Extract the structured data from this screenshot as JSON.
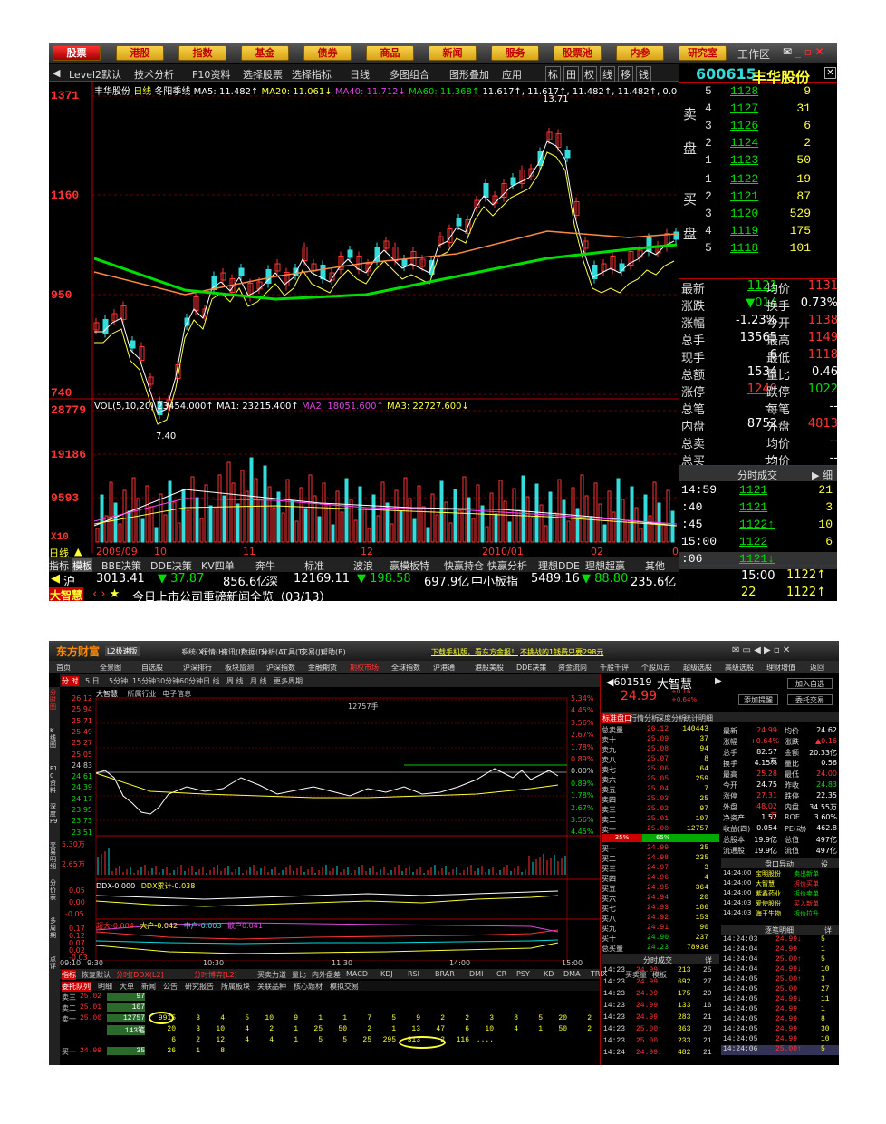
{
  "s1": {
    "menu": [
      "股票",
      "港股",
      "指数",
      "基金",
      "债券",
      "商品",
      "新闻",
      "服务",
      "股票池",
      "内参",
      "研究室"
    ],
    "workarea": "工作区",
    "toolbar": [
      "Level2默认",
      "技术分析",
      "F10资料",
      "选择股票",
      "选择指标",
      "日线",
      "多图组合",
      "图形叠加",
      "应用"
    ],
    "toolbar_icons": [
      "标",
      "田",
      "权",
      "线",
      "移",
      "钱"
    ],
    "stock_code": "600615",
    "stock_name": "丰华股份",
    "chart_header": {
      "name": "丰华股份",
      "period": "日线",
      "type": "冬阳季线",
      "ma5": "MA5: 11.482↑",
      "ma20": "MA20: 11.061↓",
      "ma40": "MA40: 11.712↓",
      "ma60": "MA60: 11.368↑",
      "extra": "11.617↑, 11.617↑, 11.482↑, 11.482↑, 0.0"
    },
    "price_axis": [
      "1371",
      "1160",
      "950",
      "740"
    ],
    "high_label": "13.71",
    "low_label": "7.40",
    "vol_header": {
      "label": "VOL(5,10,20)",
      "vol": "23454.000↑",
      "ma1": "MA1: 23215.400↑",
      "ma2": "MA2: 18051.600↑",
      "ma3": "MA3: 22727.600↓"
    },
    "vol_axis": [
      "28779",
      "19186",
      "9593",
      "X10"
    ],
    "date_axis": [
      "日线",
      "2009/09",
      "10",
      "11",
      "12",
      "2010/01",
      "02",
      "03"
    ],
    "sell_label": [
      "卖",
      "盘"
    ],
    "buy_label": [
      "买",
      "盘"
    ],
    "sell_orders": [
      {
        "i": "5",
        "p": "1128",
        "v": "9"
      },
      {
        "i": "4",
        "p": "1127",
        "v": "31"
      },
      {
        "i": "3",
        "p": "1126",
        "v": "6"
      },
      {
        "i": "2",
        "p": "1124",
        "v": "2"
      },
      {
        "i": "1",
        "p": "1123",
        "v": "50"
      }
    ],
    "buy_orders": [
      {
        "i": "1",
        "p": "1122",
        "v": "19"
      },
      {
        "i": "2",
        "p": "1121",
        "v": "87"
      },
      {
        "i": "3",
        "p": "1120",
        "v": "529"
      },
      {
        "i": "4",
        "p": "1119",
        "v": "175"
      },
      {
        "i": "5",
        "p": "1118",
        "v": "101"
      }
    ],
    "quote": [
      {
        "k1": "最新",
        "v1": "1121",
        "k2": "均价",
        "v2": "1131"
      },
      {
        "k1": "涨跌",
        "v1": "▼014",
        "k2": "换手",
        "v2": "0.73%"
      },
      {
        "k1": "涨幅",
        "v1": "-1.23%",
        "k2": "今开",
        "v2": "1138"
      },
      {
        "k1": "总手",
        "v1": "13565",
        "k2": "最高",
        "v2": "1149"
      },
      {
        "k1": "现手",
        "v1": "6",
        "k2": "最低",
        "v2": "1118"
      },
      {
        "k1": "总额",
        "v1": "1534",
        "k2": "量比",
        "v2": "0.46"
      },
      {
        "k1": "涨停",
        "v1": "1249",
        "k2": "跌停",
        "v2": "1022"
      },
      {
        "k1": "总笔",
        "v1": "---",
        "k2": "每笔",
        "v2": "--"
      },
      {
        "k1": "内盘",
        "v1": "8752",
        "k2": "外盘",
        "v2": "4813"
      },
      {
        "k1": "总卖",
        "v1": "---",
        "k2": "均价",
        "v2": "--"
      },
      {
        "k1": "总买",
        "v1": "---",
        "k2": "均价",
        "v2": "--"
      }
    ],
    "ticks_header": "分时成交",
    "ticks_tab": "细",
    "ticks": [
      {
        "t": "14:59",
        "p": "1121",
        "v": "21"
      },
      {
        "t": ":40",
        "p": "1121",
        "v": "3"
      },
      {
        "t": ":45",
        "p": "1122↑",
        "v": "10"
      },
      {
        "t": "15:00",
        "p": "1122",
        "v": "6"
      },
      {
        "t": ":06",
        "p": "1121↓",
        "v": ""
      }
    ],
    "ticks_tail": [
      {
        "t": "15:00",
        "p": "1122↑"
      },
      {
        "t": "",
        "p": "1122↑"
      }
    ],
    "ticks_tail_nums": [
      "22",
      "1122"
    ],
    "tabs": [
      "指标",
      "模板",
      "BBE决策",
      "DDE决策",
      "KV四单",
      "奔牛",
      "标准",
      "波浪",
      "赢模板特",
      "快赢持仓",
      "快赢分析",
      "理想DDE",
      "理想超赢",
      "其他"
    ],
    "index_bar": {
      "sh_label": "沪",
      "sh": "3013.41",
      "sh_chg": "▼ 37.87",
      "sh_amt": "856.6亿",
      "sz_label": "深",
      "sz": "12169.11",
      "sz_chg": "▼ 198.58",
      "sz_amt": "697.9亿",
      "zx_label": "中小板指",
      "zx": "5489.16",
      "zx_chg": "▼ 88.80",
      "zx_amt": "235.6亿"
    },
    "news": {
      "badge": "大智慧",
      "text": "今日上市公司重磅新闻全览（03/13）"
    }
  },
  "s2": {
    "logo": "东方财富",
    "logo_sub": "L2极速版",
    "title_menu": [
      "系统(X)",
      "行情(H)",
      "资讯(I)",
      "数据(D)",
      "分析(A)",
      "工具(T)",
      "交易(J)",
      "帮助(B)"
    ],
    "title_ads": [
      "下载手机版，看东方金报！",
      "不挑战的1钱费只要298元"
    ],
    "nav": [
      "首页",
      "全景图",
      "自选股",
      "沪深排行",
      "板块监测",
      "沪深指数",
      "金融期货",
      "期权市场",
      "全球指数",
      "沪港通",
      "港股美股",
      "DDE决策",
      "资金流向",
      "千股千评",
      "个股风云",
      "超级选股",
      "高级选股",
      "理财增值",
      "返回"
    ],
    "chart_tabs": [
      "分 时",
      "5 日",
      "5分钟",
      "15分钟",
      "30分钟",
      "60分钟",
      "日 线",
      "周 线",
      "月 线",
      "更多周期"
    ],
    "side_tabs": [
      "分时图",
      "K线图",
      "F10资料",
      "深度F9",
      "交易明细",
      "分价表",
      "多周期",
      "点评"
    ],
    "chart_title": {
      "name": "大智慧",
      "industry": "所属行业",
      "sector": "电子信息"
    },
    "chart_label": "12757手",
    "price_axis": [
      "26.12",
      "25.94",
      "25.71",
      "25.49",
      "25.27",
      "25.05",
      "24.83",
      "24.61",
      "24.39",
      "24.17",
      "23.95",
      "23.73",
      "23.51"
    ],
    "pct_axis": [
      "5.34%",
      "4.45%",
      "3.56%",
      "2.67%",
      "1.78%",
      "0.89%",
      "0.00%",
      "0.89%",
      "1.78%",
      "2.67%",
      "3.56%",
      "4.45%"
    ],
    "vol_axis": [
      "5.30万",
      "2.65万"
    ],
    "ddx_header": [
      "DDX-0.000",
      "DDX累计-0.038"
    ],
    "ddx_axis": [
      "0.05",
      "0.00",
      "-0.05"
    ],
    "ddx2_header": [
      "超大-0.004",
      "大户-0.042",
      "中户-0.003",
      "散户0.041"
    ],
    "ddx2_axis": [
      "0.17",
      "0.12",
      "0.07",
      "0.02",
      "-0.03"
    ],
    "time_axis": [
      "09:10",
      "9:30",
      "10:30",
      "11:30",
      "14:00",
      "15:00"
    ],
    "bottom_tabs": [
      "指标",
      "恢复默认",
      "分时[DDX(L2]",
      "分时博弈[L2]",
      "买卖力道",
      "量比",
      "内外盘差",
      "MACD",
      "KDJ",
      "RSI",
      "BRAR",
      "DMI",
      "CR",
      "PSY",
      "KD",
      "DMA",
      "TRIX",
      "买卖量",
      "模板"
    ],
    "bottom_tabs2": [
      "委托队列",
      "明细",
      "大单",
      "新闻",
      "公告",
      "研究报告",
      "所属板块",
      "关联品种",
      "核心题材",
      "模拟交易"
    ],
    "queue": [
      {
        "label": "卖三",
        "price": "25.02",
        "vol": "97",
        "items": []
      },
      {
        "label": "卖二",
        "price": "25.01",
        "vol": "107",
        "items": []
      },
      {
        "label": "卖一",
        "price": "25.00",
        "vol": "12757",
        "items": [
          "9915",
          "3",
          "4",
          "5",
          "10",
          "9",
          "1",
          "1",
          "7",
          "5",
          "9",
          "2",
          "2",
          "3",
          "8",
          "5",
          "20",
          "2"
        ]
      },
      {
        "label": "",
        "price": "",
        "vol": "143笔",
        "items": [
          "20",
          "3",
          "10",
          "4",
          "2",
          "1",
          "25",
          "50",
          "2",
          "1",
          "13",
          "47",
          "6",
          "10",
          "4",
          "1",
          "50",
          "2"
        ]
      },
      {
        "label": "",
        "price": "",
        "vol": "",
        "items": [
          "6",
          "2",
          "12",
          "4",
          "4",
          "1",
          "5",
          "5",
          "25",
          "295",
          "313",
          "2",
          "116",
          "...."
        ]
      },
      {
        "label": "买一",
        "price": "24.99",
        "vol": "35",
        "items": [
          "26",
          "1",
          "8"
        ]
      }
    ],
    "code": "601519",
    "name": "大智慧",
    "price": "24.99",
    "chg": "+0.16",
    "chg_pct": "+0.64%",
    "btns": [
      "加入自选",
      "添加提醒",
      "委托交易"
    ],
    "sub_tabs": [
      "标准盘口",
      "行情分析",
      "深度分析",
      "统计明细"
    ],
    "total_sell": {
      "label": "总卖量",
      "price": "26.12",
      "vol": "140443"
    },
    "sells": [
      {
        "n": "卖十",
        "p": "25.09",
        "v": "37"
      },
      {
        "n": "卖九",
        "p": "25.08",
        "v": "94"
      },
      {
        "n": "卖八",
        "p": "25.07",
        "v": "8"
      },
      {
        "n": "卖七",
        "p": "25.06",
        "v": "64"
      },
      {
        "n": "卖六",
        "p": "25.05",
        "v": "259"
      },
      {
        "n": "卖五",
        "p": "25.04",
        "v": "7"
      },
      {
        "n": "卖四",
        "p": "25.03",
        "v": "25"
      },
      {
        "n": "卖三",
        "p": "25.02",
        "v": "97"
      },
      {
        "n": "卖二",
        "p": "25.01",
        "v": "107"
      },
      {
        "n": "卖一",
        "p": "25.00",
        "v": "12757"
      }
    ],
    "ratio": {
      "left": "35%",
      "right": "65%"
    },
    "buys": [
      {
        "n": "买一",
        "p": "24.99",
        "v": "35"
      },
      {
        "n": "买二",
        "p": "24.98",
        "v": "235"
      },
      {
        "n": "买三",
        "p": "24.97",
        "v": "3"
      },
      {
        "n": "买四",
        "p": "24.96",
        "v": "4"
      },
      {
        "n": "买五",
        "p": "24.95",
        "v": "364"
      },
      {
        "n": "买六",
        "p": "24.94",
        "v": "20"
      },
      {
        "n": "买七",
        "p": "24.93",
        "v": "186"
      },
      {
        "n": "买八",
        "p": "24.92",
        "v": "153"
      },
      {
        "n": "买九",
        "p": "24.91",
        "v": "90"
      },
      {
        "n": "买十",
        "p": "24.90",
        "v": "237"
      }
    ],
    "total_buy": {
      "label": "总买量",
      "price": "24.23",
      "vol": "78936"
    },
    "quote": [
      [
        "最新",
        "24.99",
        "均价",
        "24.62"
      ],
      [
        "涨幅",
        "+0.64%",
        "涨跌",
        "▲0.16"
      ],
      [
        "总手",
        "82.57万",
        "金额",
        "20.33亿"
      ],
      [
        "换手",
        "4.15%",
        "量比",
        "0.56"
      ],
      [
        "最高",
        "25.28",
        "最低",
        "24.00"
      ],
      [
        "今开",
        "24.75",
        "昨收",
        "24.83"
      ],
      [
        "涨停",
        "27.31",
        "跌停",
        "22.35"
      ],
      [
        "外盘",
        "48.02万",
        "内盘",
        "34.55万"
      ],
      [
        "净资产",
        "1.52",
        "ROE",
        "3.60%"
      ],
      [
        "收益(四)",
        "0.054",
        "PE(动)",
        "462.8"
      ],
      [
        "总股本",
        "19.9亿",
        "总值",
        "497亿"
      ],
      [
        "流通股",
        "19.9亿",
        "流值",
        "497亿"
      ]
    ],
    "yidong_title": "盘口异动",
    "yidong_set": "设",
    "yidong": [
      [
        "14:24:00",
        "宝明股份",
        "卖出新单"
      ],
      [
        "14:24:00",
        "大智慧",
        "拆价买单"
      ],
      [
        "14:24:00",
        "紫鑫药业",
        "拆价卖单"
      ],
      [
        "14:24:03",
        "爱使股份",
        "买入新单"
      ],
      [
        "14:24:03",
        "海王生物",
        "拆价拉升"
      ]
    ],
    "deal_title": "分时成交",
    "deal_tab": "详",
    "deals": [
      [
        "14:23",
        "24.99",
        "213",
        "25"
      ],
      [
        "14:23",
        "24.99",
        "692",
        "27"
      ],
      [
        "14:23",
        "24.99",
        "175",
        "29"
      ],
      [
        "14:23",
        "24.99",
        "133",
        "16"
      ],
      [
        "14:23",
        "24.99",
        "283",
        "21"
      ],
      [
        "14:23",
        "25.00↑",
        "363",
        "20"
      ],
      [
        "14:23",
        "25.00",
        "233",
        "21"
      ],
      [
        "14:24",
        "24.99↓",
        "482",
        "21"
      ]
    ],
    "deal2_title": "逐笔明细",
    "deal2_tab": "详",
    "deals2": [
      [
        "14:24:03",
        "24.99↓",
        "5"
      ],
      [
        "14:24:04",
        "24.99",
        "1"
      ],
      [
        "14:24:04",
        "25.00↑",
        "5"
      ],
      [
        "14:24:04",
        "24.99↓",
        "10"
      ],
      [
        "14:24:05",
        "25.00↑",
        "3"
      ],
      [
        "14:24:05",
        "25.00",
        "27"
      ],
      [
        "14:24:05",
        "24.99↓",
        "11"
      ],
      [
        "14:24:05",
        "24.99",
        "1"
      ],
      [
        "14:24:05",
        "24.99",
        "8"
      ],
      [
        "14:24:05",
        "24.99",
        "30"
      ],
      [
        "14:24:05",
        "24.99",
        "10"
      ],
      [
        "14:24:06",
        "25.00↑",
        "5"
      ]
    ]
  }
}
